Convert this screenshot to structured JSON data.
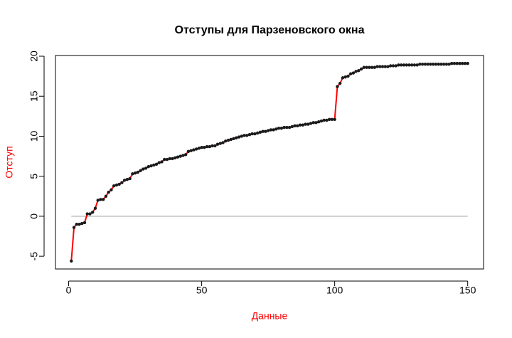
{
  "chart_data": {
    "type": "line",
    "title": "Отступы для Парзеновского окна",
    "xlabel": "Данные",
    "ylabel": "Отступ",
    "label_color": "#ff0000",
    "color": "#ff0000",
    "marker_color": "#1a1a1a",
    "hline": 0,
    "hline_color": "#bebebe",
    "x": [
      1,
      2,
      3,
      4,
      5,
      6,
      7,
      8,
      9,
      10,
      11,
      12,
      13,
      14,
      15,
      16,
      17,
      18,
      19,
      20,
      21,
      22,
      23,
      24,
      25,
      26,
      27,
      28,
      29,
      30,
      31,
      32,
      33,
      34,
      35,
      36,
      37,
      38,
      39,
      40,
      41,
      42,
      43,
      44,
      45,
      46,
      47,
      48,
      49,
      50,
      51,
      52,
      53,
      54,
      55,
      56,
      57,
      58,
      59,
      60,
      61,
      62,
      63,
      64,
      65,
      66,
      67,
      68,
      69,
      70,
      71,
      72,
      73,
      74,
      75,
      76,
      77,
      78,
      79,
      80,
      81,
      82,
      83,
      84,
      85,
      86,
      87,
      88,
      89,
      90,
      91,
      92,
      93,
      94,
      95,
      96,
      97,
      98,
      99,
      100,
      101,
      102,
      103,
      104,
      105,
      106,
      107,
      108,
      109,
      110,
      111,
      112,
      113,
      114,
      115,
      116,
      117,
      118,
      119,
      120,
      121,
      122,
      123,
      124,
      125,
      126,
      127,
      128,
      129,
      130,
      131,
      132,
      133,
      134,
      135,
      136,
      137,
      138,
      139,
      140,
      141,
      142,
      143,
      144,
      145,
      146,
      147,
      148,
      149,
      150
    ],
    "values": [
      -5.6,
      -1.4,
      -1.0,
      -1.0,
      -0.9,
      -0.8,
      0.3,
      0.3,
      0.5,
      1.0,
      2.0,
      2.1,
      2.1,
      2.5,
      3.0,
      3.3,
      3.8,
      3.9,
      4.0,
      4.2,
      4.5,
      4.6,
      4.7,
      5.3,
      5.4,
      5.5,
      5.7,
      5.9,
      6.0,
      6.2,
      6.3,
      6.4,
      6.5,
      6.7,
      6.8,
      7.1,
      7.1,
      7.2,
      7.2,
      7.3,
      7.4,
      7.5,
      7.6,
      7.7,
      8.1,
      8.2,
      8.3,
      8.4,
      8.5,
      8.6,
      8.6,
      8.7,
      8.7,
      8.8,
      8.8,
      9.0,
      9.1,
      9.2,
      9.4,
      9.5,
      9.6,
      9.7,
      9.8,
      9.9,
      10.0,
      10.1,
      10.1,
      10.2,
      10.3,
      10.3,
      10.4,
      10.5,
      10.6,
      10.6,
      10.7,
      10.8,
      10.8,
      10.9,
      11.0,
      11.0,
      11.1,
      11.1,
      11.1,
      11.2,
      11.3,
      11.3,
      11.4,
      11.4,
      11.5,
      11.5,
      11.6,
      11.7,
      11.7,
      11.8,
      11.9,
      12.0,
      12.0,
      12.1,
      12.1,
      12.1,
      16.2,
      16.6,
      17.3,
      17.4,
      17.5,
      17.8,
      17.9,
      18.1,
      18.2,
      18.4,
      18.6,
      18.6,
      18.6,
      18.6,
      18.6,
      18.7,
      18.7,
      18.7,
      18.7,
      18.7,
      18.8,
      18.8,
      18.8,
      18.9,
      18.9,
      18.9,
      18.9,
      18.9,
      18.9,
      18.9,
      18.9,
      19.0,
      19.0,
      19.0,
      19.0,
      19.0,
      19.0,
      19.0,
      19.0,
      19.0,
      19.0,
      19.0,
      19.0,
      19.1,
      19.1,
      19.1,
      19.1,
      19.1,
      19.1,
      19.1
    ],
    "xlim": [
      -4.96,
      155.96
    ],
    "xticks": [
      0,
      50,
      100,
      150
    ],
    "ylim": [
      -6.59,
      20.09
    ],
    "yticks": [
      -5,
      0,
      5,
      10,
      15,
      20
    ]
  }
}
